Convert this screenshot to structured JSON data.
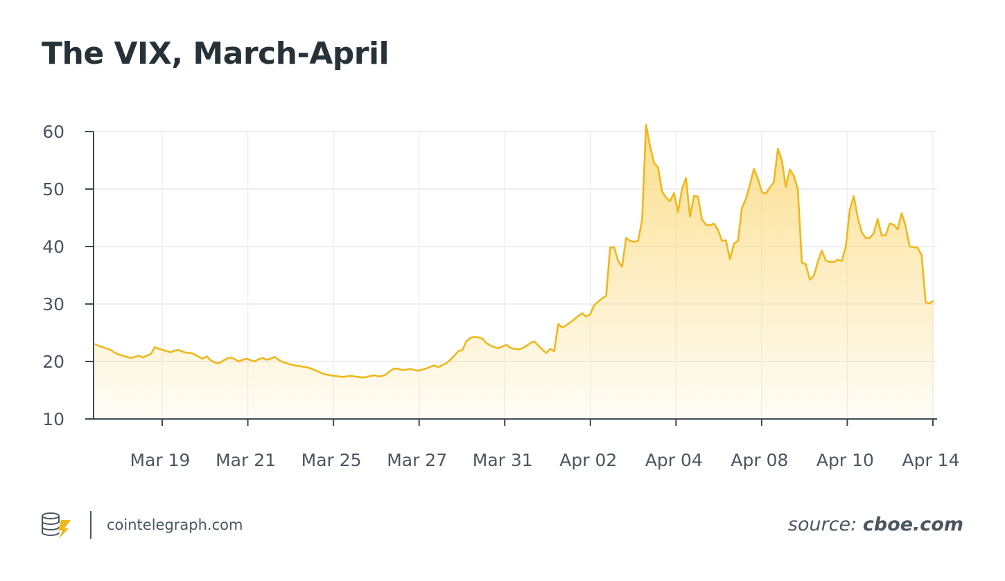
{
  "chart_data": {
    "type": "area",
    "title": "The VIX, March-April",
    "xlabel": "",
    "ylabel": "",
    "ylim": [
      10,
      60
    ],
    "yticks": [
      10,
      20,
      30,
      40,
      50,
      60
    ],
    "xtick_labels": [
      "Mar 19",
      "Mar 21",
      "Mar 25",
      "Mar 27",
      "Mar 31",
      "Apr 02",
      "Apr 04",
      "Apr 08",
      "Apr 10",
      "Apr 14"
    ],
    "grid": true,
    "legend": "none",
    "line_color": "#f0b71a",
    "fill_color": "#fbd878",
    "values": [
      23.0,
      22.7,
      22.5,
      22.2,
      22.0,
      21.5,
      21.2,
      21.0,
      20.8,
      20.6,
      20.8,
      21.0,
      20.7,
      21.0,
      21.3,
      22.5,
      22.2,
      22.0,
      21.8,
      21.6,
      21.9,
      22.0,
      21.7,
      21.5,
      21.5,
      21.2,
      20.8,
      20.5,
      20.9,
      20.2,
      19.8,
      19.7,
      20.1,
      20.5,
      20.7,
      20.4,
      20.0,
      20.3,
      20.5,
      20.2,
      20.0,
      20.4,
      20.6,
      20.3,
      20.5,
      20.8,
      20.3,
      19.9,
      19.7,
      19.5,
      19.3,
      19.2,
      19.1,
      19.0,
      18.8,
      18.5,
      18.2,
      17.9,
      17.7,
      17.6,
      17.5,
      17.4,
      17.3,
      17.4,
      17.5,
      17.4,
      17.3,
      17.2,
      17.3,
      17.5,
      17.6,
      17.4,
      17.5,
      17.8,
      18.4,
      18.8,
      18.7,
      18.5,
      18.6,
      18.7,
      18.5,
      18.4,
      18.6,
      18.8,
      19.1,
      19.3,
      19.0,
      19.4,
      19.7,
      20.3,
      21.0,
      21.8,
      22.0,
      23.5,
      24.1,
      24.3,
      24.2,
      24.0,
      23.2,
      22.8,
      22.5,
      22.3,
      22.6,
      22.9,
      22.4,
      22.2,
      22.1,
      22.3,
      22.7,
      23.2,
      23.5,
      22.8,
      22.1,
      21.5,
      22.2,
      21.8,
      26.5,
      25.9,
      26.3,
      26.8,
      27.3,
      27.9,
      28.4,
      27.8,
      28.2,
      29.8,
      30.4,
      31.0,
      31.4,
      39.8,
      39.9,
      37.5,
      36.5,
      41.5,
      41.0,
      40.8,
      41.0,
      44.6,
      61.2,
      57.5,
      54.5,
      53.8,
      49.6,
      48.5,
      47.9,
      49.3,
      46.0,
      50.0,
      51.9,
      45.2,
      48.8,
      48.7,
      44.7,
      43.8,
      43.7,
      44.0,
      42.9,
      41.0,
      41.1,
      37.8,
      40.5,
      41.0,
      46.7,
      48.3,
      50.8,
      53.5,
      51.8,
      49.5,
      49.2,
      50.3,
      51.2,
      57.0,
      55.0,
      50.4,
      53.4,
      52.3,
      50.0,
      37.2,
      36.9,
      34.2,
      34.9,
      37.3,
      39.3,
      37.6,
      37.3,
      37.3,
      37.7,
      37.5,
      39.9,
      46.4,
      48.8,
      45.0,
      42.5,
      41.5,
      41.5,
      42.3,
      44.8,
      41.9,
      42.0,
      44.0,
      43.8,
      43.0,
      45.8,
      43.5,
      40.0,
      39.9,
      39.8,
      38.5,
      30.3,
      30.1,
      30.6
    ]
  },
  "footer": {
    "brand": "cointelegraph.com",
    "source_label": "source:",
    "source_value": "cboe.com"
  }
}
